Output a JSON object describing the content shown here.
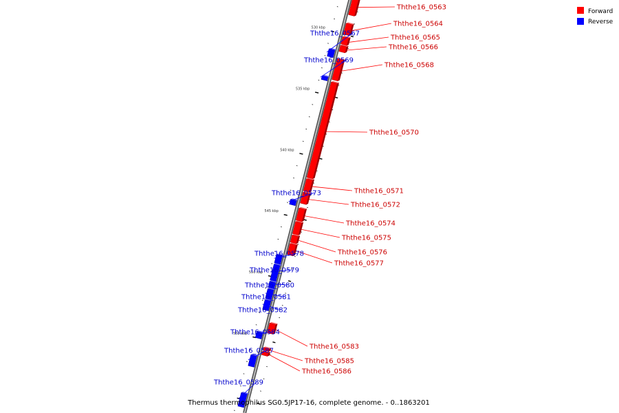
{
  "caption": "Thermus thermophilus SG0.5JP17-16, complete genome. - 0..1863201",
  "colors": {
    "forward": "#ff0000",
    "reverse": "#0000ff",
    "axis": "#8c8c8c"
  },
  "legend": [
    {
      "label": "Forward",
      "color": "#ff0000"
    },
    {
      "label": "Reverse",
      "color": "#0000ff"
    }
  ],
  "scale": {
    "unit": "kbp",
    "labels": [
      {
        "text": "530 kbp",
        "kbp": 530
      },
      {
        "text": "535 kbp",
        "kbp": 535
      },
      {
        "text": "540 kbp",
        "kbp": 540
      },
      {
        "text": "545 kbp",
        "kbp": 545
      },
      {
        "text": "550 kbp",
        "kbp": 550
      },
      {
        "text": "555 kbp",
        "kbp": 555
      }
    ]
  },
  "genes": [
    {
      "name": "Ththe16_0563",
      "strand": "forward",
      "start_kbp": 526.9,
      "end_kbp": 528.4
    },
    {
      "name": "Ththe16_0564",
      "strand": "forward",
      "start_kbp": 529.1,
      "end_kbp": 530.0
    },
    {
      "name": "Ththe16_0565",
      "strand": "forward",
      "start_kbp": 530.2,
      "end_kbp": 530.8
    },
    {
      "name": "Ththe16_0566",
      "strand": "forward",
      "start_kbp": 530.9,
      "end_kbp": 531.4
    },
    {
      "name": "Ththe16_0567",
      "strand": "reverse",
      "start_kbp": 531.4,
      "end_kbp": 532.0
    },
    {
      "name": "Ththe16_0568",
      "strand": "forward",
      "start_kbp": 532.0,
      "end_kbp": 533.7
    },
    {
      "name": "Ththe16_0569",
      "strand": "reverse",
      "start_kbp": 533.6,
      "end_kbp": 533.9
    },
    {
      "name": "Ththe16_0570",
      "strand": "forward",
      "start_kbp": 533.9,
      "end_kbp": 541.7
    },
    {
      "name": "Ththe16_0571",
      "strand": "forward",
      "start_kbp": 541.8,
      "end_kbp": 542.8
    },
    {
      "name": "Ththe16_0572",
      "strand": "forward",
      "start_kbp": 542.9,
      "end_kbp": 543.8
    },
    {
      "name": "Ththe16_0573",
      "strand": "reverse",
      "start_kbp": 543.7,
      "end_kbp": 544.1
    },
    {
      "name": "Ththe16_0574",
      "strand": "forward",
      "start_kbp": 544.2,
      "end_kbp": 545.2
    },
    {
      "name": "Ththe16_0575",
      "strand": "forward",
      "start_kbp": 545.3,
      "end_kbp": 546.3
    },
    {
      "name": "Ththe16_0576",
      "strand": "forward",
      "start_kbp": 546.4,
      "end_kbp": 547.0
    },
    {
      "name": "Ththe16_0577",
      "strand": "forward",
      "start_kbp": 547.1,
      "end_kbp": 548.0
    },
    {
      "name": "Ththe16_0578",
      "strand": "reverse",
      "start_kbp": 548.2,
      "end_kbp": 548.9
    },
    {
      "name": "Ththe16_0579",
      "strand": "reverse",
      "start_kbp": 549.0,
      "end_kbp": 550.3
    },
    {
      "name": "Ththe16_0580",
      "strand": "reverse",
      "start_kbp": 550.4,
      "end_kbp": 550.9
    },
    {
      "name": "Ththe16_0581",
      "strand": "reverse",
      "start_kbp": 551.0,
      "end_kbp": 551.8
    },
    {
      "name": "Ththe16_0582",
      "strand": "reverse",
      "start_kbp": 551.9,
      "end_kbp": 552.7
    },
    {
      "name": "Ththe16_0583",
      "strand": "forward",
      "start_kbp": 553.6,
      "end_kbp": 554.4
    },
    {
      "name": "Ththe16_0584",
      "strand": "reverse",
      "start_kbp": 554.5,
      "end_kbp": 555.0
    },
    {
      "name": "Ththe16_0585",
      "strand": "forward",
      "start_kbp": 555.6,
      "end_kbp": 555.8
    },
    {
      "name": "Ththe16_0586",
      "strand": "forward",
      "start_kbp": 555.9,
      "end_kbp": 556.2
    },
    {
      "name": "Ththe16_0587",
      "strand": "reverse",
      "start_kbp": 556.4,
      "end_kbp": 557.3
    },
    {
      "name": "Ththe16_0589",
      "strand": "reverse",
      "start_kbp": 559.5,
      "end_kbp": 560.6
    }
  ]
}
